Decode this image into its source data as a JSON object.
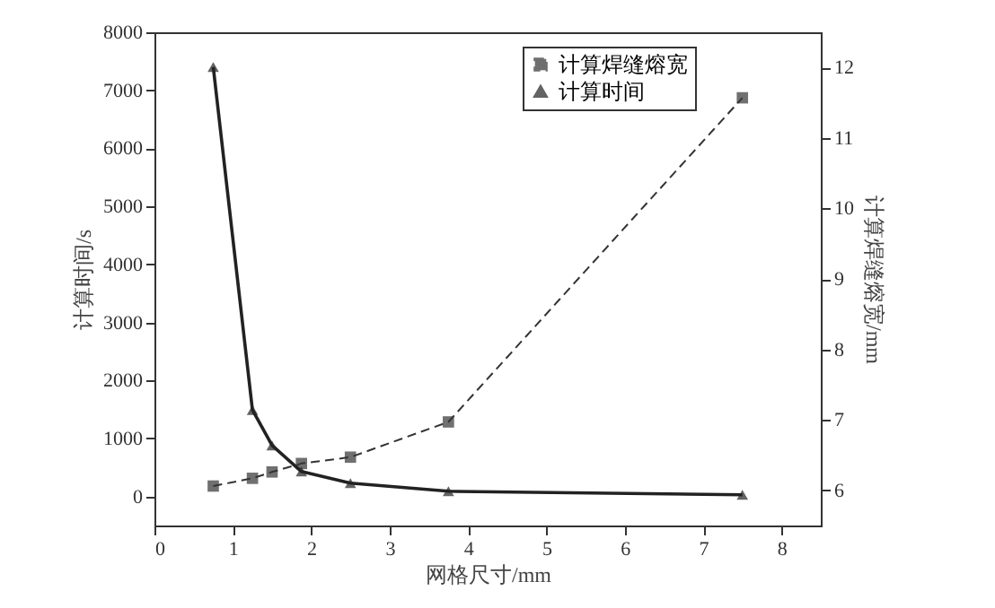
{
  "chart_data": {
    "type": "line",
    "xlabel": "网格尺寸/mm",
    "ylabel": "计算时间/s",
    "y2label": "计算焊缝熔宽/mm",
    "xlim": [
      0,
      8.5
    ],
    "xticks": [
      0,
      1,
      2,
      3,
      4,
      5,
      6,
      7,
      8
    ],
    "ylim": [
      -500,
      8000
    ],
    "yticks": [
      0,
      1000,
      2000,
      3000,
      4000,
      5000,
      6000,
      7000,
      8000
    ],
    "y2lim": [
      5.5,
      12.5
    ],
    "y2ticks": [
      6,
      7,
      8,
      9,
      10,
      11,
      12
    ],
    "legend": "top right",
    "grid": false,
    "series": [
      {
        "name": "计算焊缝熔宽",
        "color": "#333333",
        "axis": "y2",
        "marker": "square",
        "line_style": "dashed",
        "x": [
          0.75,
          1.25,
          1.5,
          1.875,
          2.5,
          3.75,
          7.5
        ],
        "values": [
          6.06,
          6.17,
          6.26,
          6.38,
          6.47,
          6.97,
          11.57
        ]
      },
      {
        "name": "计算时间",
        "color": "#222222",
        "marker": "triangle",
        "line_style": "solid",
        "x": [
          0.75,
          1.25,
          1.5,
          1.875,
          2.5,
          3.75,
          7.5
        ],
        "values": [
          7400,
          1490,
          880,
          430,
          230,
          90,
          30
        ]
      }
    ]
  }
}
